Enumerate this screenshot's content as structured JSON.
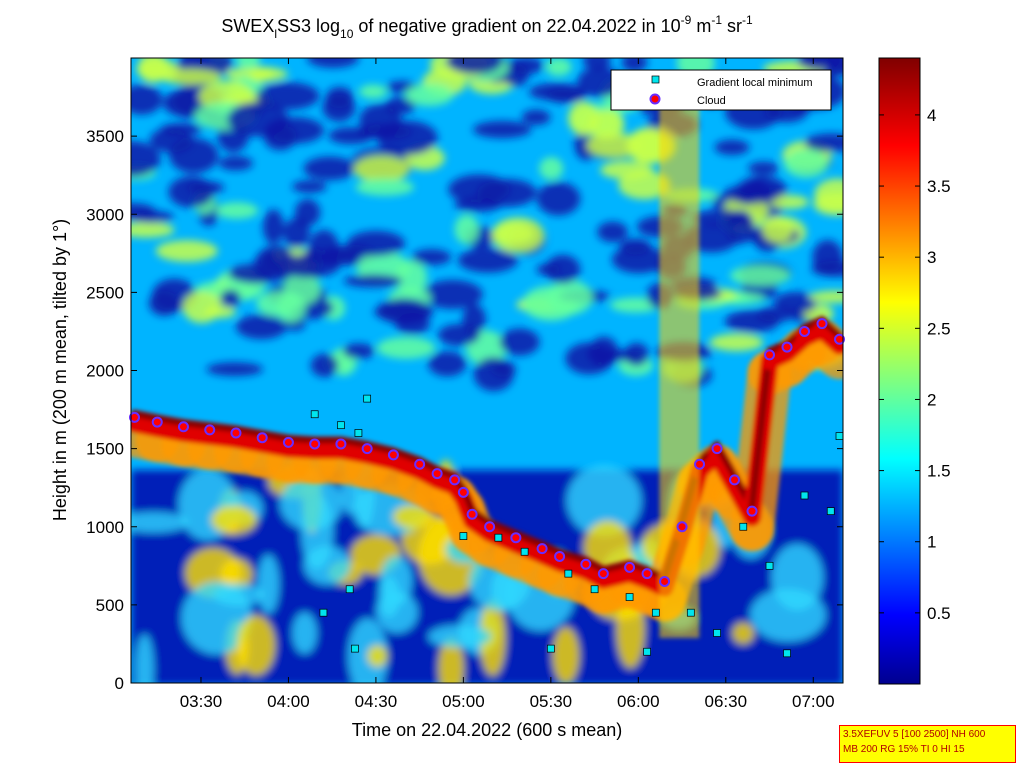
{
  "title": {
    "prefix": "SWEX",
    "prefix_sub": "l",
    "mid": "SS3 log",
    "log_base": "10",
    "suffix": " of negative gradient on 22.04.2022 in 10",
    "exp1": "-9",
    "unit1": " m",
    "exp2": "-1",
    "unit2": " sr",
    "exp3": "-1"
  },
  "info_box": {
    "line1": "3.5XEFUV 5 [100 2500] NH 600",
    "line2": "MB 200 RG 15% TI 0 HI 15"
  },
  "chart_data": {
    "type": "heatmap",
    "title": "SWEXlSS3 log10 of negative gradient on 22.04.2022 in 10^-9 m^-1 sr^-1",
    "xlabel": "Time on 22.04.2022 (600 s mean)",
    "ylabel": "Height in m (200 m mean, tilted by 1°)",
    "x_ticks": [
      "03:30",
      "04:00",
      "04:30",
      "05:00",
      "05:30",
      "06:00",
      "06:30",
      "07:00"
    ],
    "x_tick_values_h": [
      3.5,
      4.0,
      4.5,
      5.0,
      5.5,
      6.0,
      6.5,
      7.0
    ],
    "xlim_h": [
      3.1,
      7.17
    ],
    "y_ticks": [
      "0",
      "500",
      "1000",
      "1500",
      "2000",
      "2500",
      "3000",
      "3500"
    ],
    "y_tick_values": [
      0,
      500,
      1000,
      1500,
      2000,
      2500,
      3000,
      3500
    ],
    "ylim": [
      0,
      4000
    ],
    "colorbar": {
      "ticks": [
        "0.5",
        "1",
        "1.5",
        "2",
        "2.5",
        "3",
        "3.5",
        "4"
      ],
      "tick_values": [
        0.5,
        1,
        1.5,
        2,
        2.5,
        3,
        3.5,
        4
      ],
      "range": [
        0,
        4.4
      ],
      "colormap": "jet"
    },
    "legend": {
      "location": "top-right",
      "entries": [
        {
          "label": "Gradient local minimum",
          "marker": "square",
          "color": "#00e5ee"
        },
        {
          "label": "Cloud",
          "marker": "circle",
          "color": "#ff0000"
        }
      ]
    },
    "cloud_track": [
      {
        "x": 3.12,
        "y": 1700
      },
      {
        "x": 3.25,
        "y": 1670
      },
      {
        "x": 3.4,
        "y": 1640
      },
      {
        "x": 3.55,
        "y": 1620
      },
      {
        "x": 3.7,
        "y": 1600
      },
      {
        "x": 3.85,
        "y": 1570
      },
      {
        "x": 4.0,
        "y": 1540
      },
      {
        "x": 4.15,
        "y": 1530
      },
      {
        "x": 4.3,
        "y": 1530
      },
      {
        "x": 4.45,
        "y": 1500
      },
      {
        "x": 4.6,
        "y": 1460
      },
      {
        "x": 4.75,
        "y": 1400
      },
      {
        "x": 4.85,
        "y": 1340
      },
      {
        "x": 4.95,
        "y": 1300
      },
      {
        "x": 5.0,
        "y": 1220
      },
      {
        "x": 5.05,
        "y": 1080
      },
      {
        "x": 5.15,
        "y": 1000
      },
      {
        "x": 5.3,
        "y": 930
      },
      {
        "x": 5.45,
        "y": 860
      },
      {
        "x": 5.55,
        "y": 810
      },
      {
        "x": 5.7,
        "y": 760
      },
      {
        "x": 5.8,
        "y": 700
      },
      {
        "x": 5.95,
        "y": 740
      },
      {
        "x": 6.05,
        "y": 700
      },
      {
        "x": 6.15,
        "y": 650
      },
      {
        "x": 6.25,
        "y": 1000
      },
      {
        "x": 6.35,
        "y": 1400
      },
      {
        "x": 6.45,
        "y": 1500
      },
      {
        "x": 6.55,
        "y": 1300
      },
      {
        "x": 6.65,
        "y": 1100
      },
      {
        "x": 6.75,
        "y": 2100
      },
      {
        "x": 6.85,
        "y": 2150
      },
      {
        "x": 6.95,
        "y": 2250
      },
      {
        "x": 7.05,
        "y": 2300
      },
      {
        "x": 7.15,
        "y": 2200
      }
    ],
    "gradient_min_track": [
      {
        "x": 4.15,
        "y": 1720
      },
      {
        "x": 4.3,
        "y": 1650
      },
      {
        "x": 4.4,
        "y": 1600
      },
      {
        "x": 4.45,
        "y": 1820
      },
      {
        "x": 4.2,
        "y": 450
      },
      {
        "x": 4.35,
        "y": 600
      },
      {
        "x": 4.38,
        "y": 220
      },
      {
        "x": 5.0,
        "y": 940
      },
      {
        "x": 5.2,
        "y": 930
      },
      {
        "x": 5.35,
        "y": 840
      },
      {
        "x": 5.6,
        "y": 700
      },
      {
        "x": 5.75,
        "y": 600
      },
      {
        "x": 5.95,
        "y": 550
      },
      {
        "x": 6.1,
        "y": 450
      },
      {
        "x": 6.3,
        "y": 450
      },
      {
        "x": 6.45,
        "y": 320
      },
      {
        "x": 6.6,
        "y": 1000
      },
      {
        "x": 6.75,
        "y": 750
      },
      {
        "x": 6.95,
        "y": 1200
      },
      {
        "x": 7.1,
        "y": 1100
      },
      {
        "x": 7.15,
        "y": 1580
      },
      {
        "x": 5.5,
        "y": 220
      },
      {
        "x": 6.05,
        "y": 200
      },
      {
        "x": 6.85,
        "y": 190
      }
    ]
  }
}
